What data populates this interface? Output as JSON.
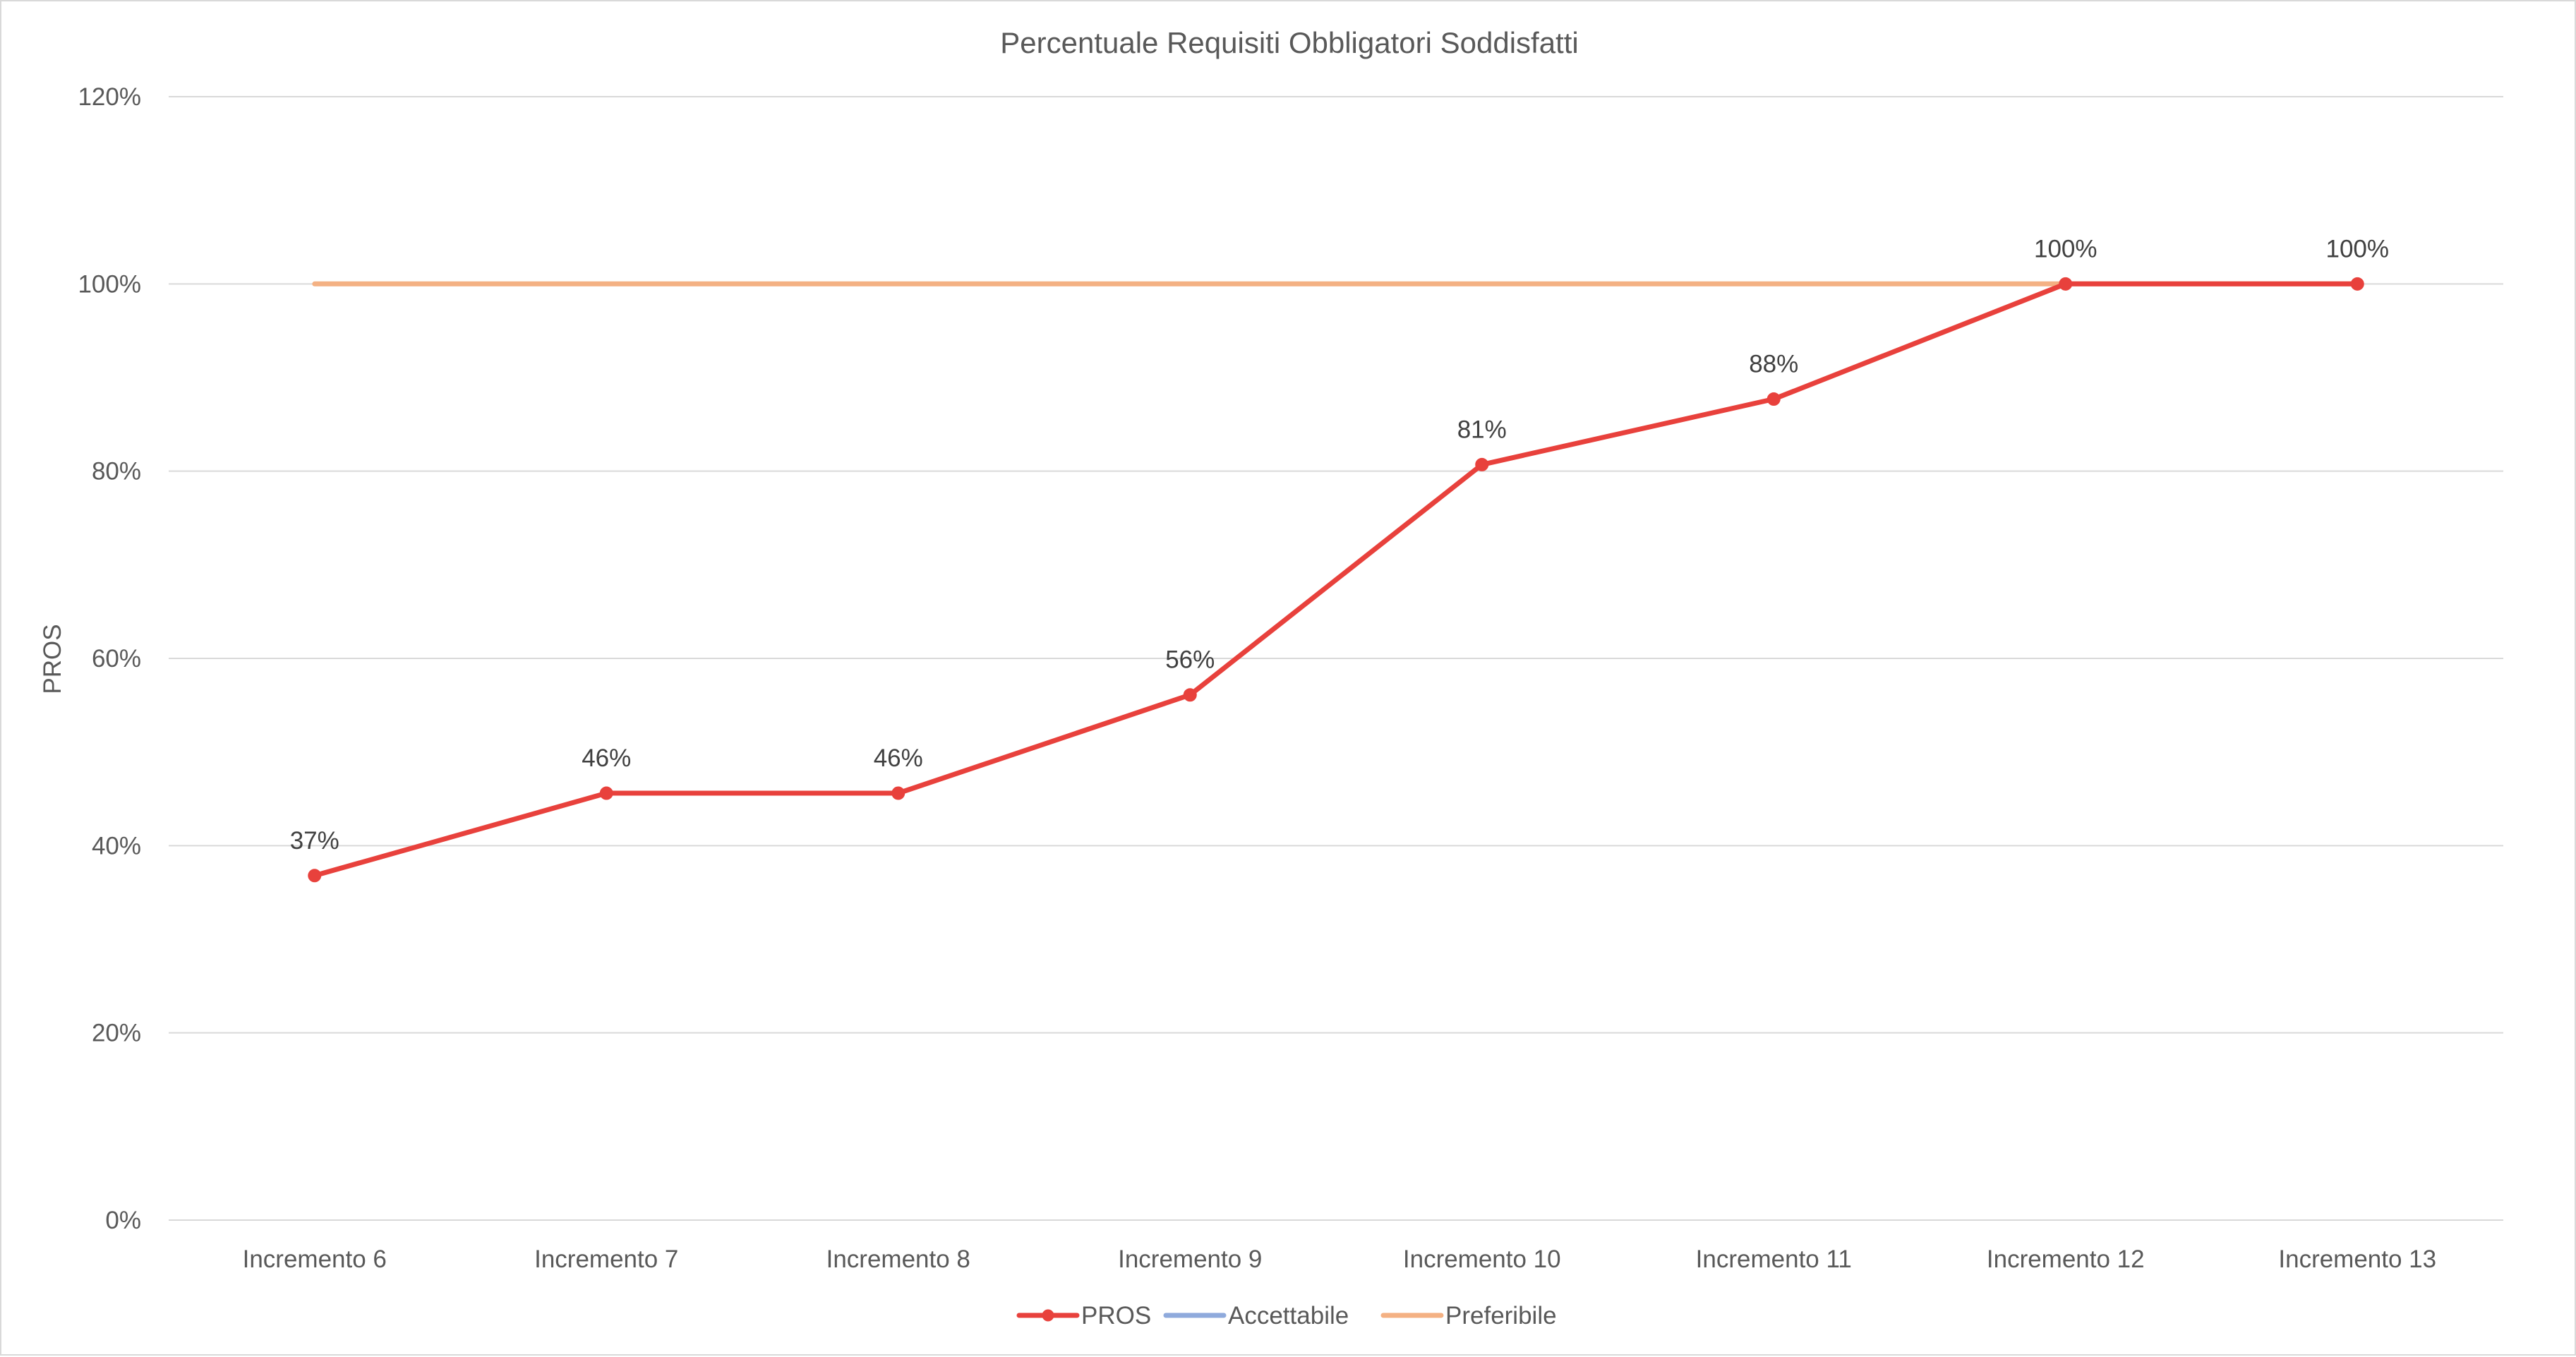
{
  "chart_data": {
    "type": "line",
    "title": "Percentuale Requisiti Obbligatori Soddisfatti",
    "xlabel": "",
    "ylabel": "PROS",
    "categories": [
      "Incremento 6",
      "Incremento 7",
      "Incremento 8",
      "Incremento 9",
      "Incremento 10",
      "Incremento 11",
      "Incremento 12",
      "Incremento 13"
    ],
    "ylim": [
      0,
      1.2
    ],
    "yticks": [
      0,
      0.2,
      0.4,
      0.6,
      0.8,
      1.0,
      1.2
    ],
    "ytick_labels": [
      "0%",
      "20%",
      "40%",
      "60%",
      "80%",
      "100%",
      "120%"
    ],
    "grid": true,
    "legend_position": "bottom",
    "series": [
      {
        "name": "PROS",
        "color": "#e8413c",
        "markers": true,
        "values": [
          0.368,
          0.456,
          0.456,
          0.561,
          0.807,
          0.877,
          1.0,
          1.0
        ],
        "data_labels": [
          "37%",
          "46%",
          "46%",
          "56%",
          "81%",
          "88%",
          "100%",
          "100%"
        ]
      },
      {
        "name": "Accettabile",
        "color": "#8faadc",
        "markers": false,
        "values": [
          null,
          null,
          null,
          null,
          null,
          null,
          null,
          null
        ]
      },
      {
        "name": "Preferibile",
        "color": "#f4b183",
        "markers": false,
        "values": [
          1.0,
          1.0,
          1.0,
          1.0,
          1.0,
          1.0,
          1.0,
          1.0
        ]
      }
    ]
  }
}
